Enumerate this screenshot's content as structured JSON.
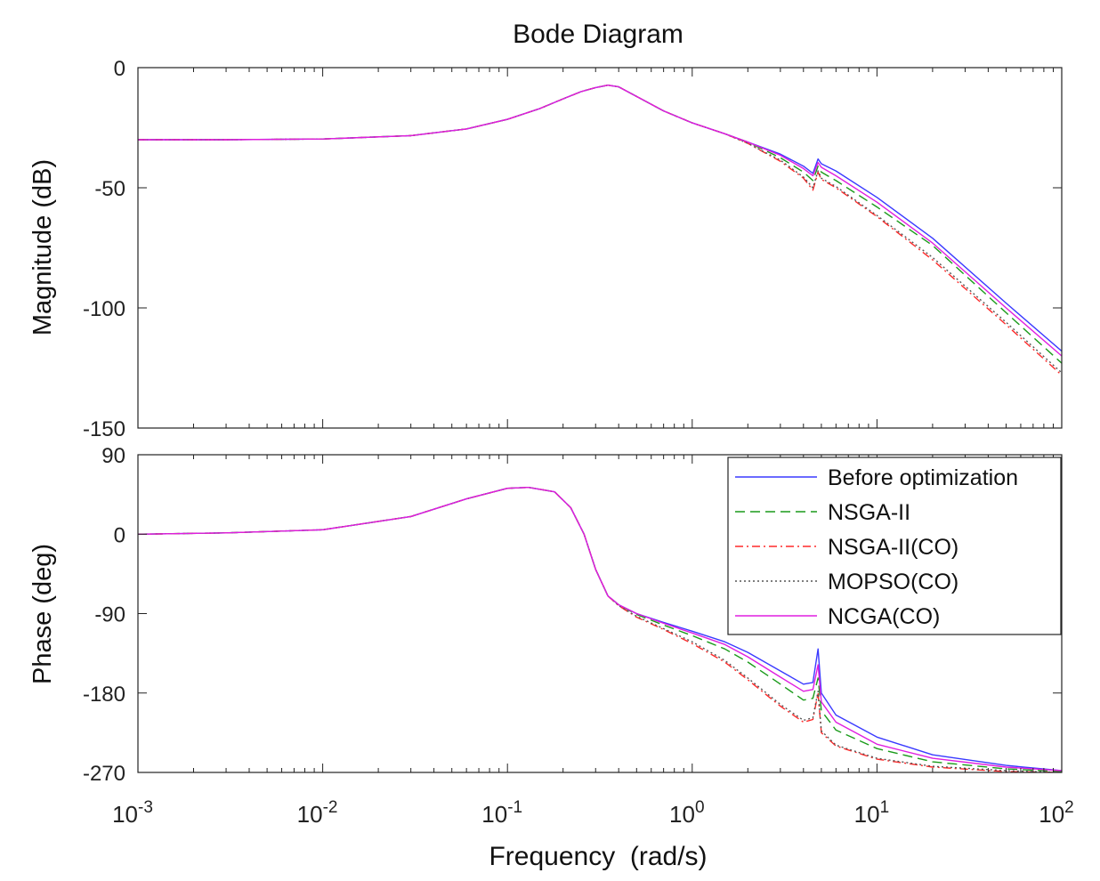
{
  "chart_data": {
    "type": "line",
    "title": "Bode Diagram",
    "xlabel": "Frequency  (rad/s)",
    "xscale": "log",
    "xlim": [
      0.001,
      100
    ],
    "x_ticks": [
      {
        "value": 0.001,
        "base": "10",
        "exp": "-3"
      },
      {
        "value": 0.01,
        "base": "10",
        "exp": "-2"
      },
      {
        "value": 0.1,
        "base": "10",
        "exp": "-1"
      },
      {
        "value": 1,
        "base": "10",
        "exp": "0"
      },
      {
        "value": 10,
        "base": "10",
        "exp": "1"
      },
      {
        "value": 100,
        "base": "10",
        "exp": "2"
      }
    ],
    "grid": false,
    "styles": {
      "Before optimization": {
        "color": "#3a3aff",
        "dash": ""
      },
      "NSGA-II": {
        "color": "#1a9a1a",
        "dash": "11,6"
      },
      "NSGA-II(CO)": {
        "color": "#ff2a2a",
        "dash": "9,4,2,4"
      },
      "MOPSO(CO)": {
        "color": "#555555",
        "dash": "2,3"
      },
      "NCGA(CO)": {
        "color": "#e01ee0",
        "dash": ""
      }
    },
    "legend": {
      "placement": "top-right of phase plot",
      "entries": [
        "Before optimization",
        "NSGA-II",
        "NSGA-II(CO)",
        "MOPSO(CO)",
        "NCGA(CO)"
      ]
    },
    "magnitude": {
      "ylabel": "Magnitude (dB)",
      "ylim": [
        -150,
        0
      ],
      "yticks": [
        "0",
        "-50",
        "-100",
        "-150"
      ],
      "series": [
        {
          "name": "Before optimization",
          "x": [
            0.001,
            0.003,
            0.01,
            0.03,
            0.06,
            0.1,
            0.15,
            0.2,
            0.25,
            0.3,
            0.35,
            0.4,
            0.5,
            0.7,
            1,
            1.5,
            2,
            3,
            4,
            4.5,
            4.8,
            5,
            6,
            10,
            20,
            50,
            100
          ],
          "y": [
            -30,
            -30,
            -29.7,
            -28.3,
            -25.5,
            -21.5,
            -17,
            -13,
            -10,
            -8.3,
            -7.3,
            -8,
            -12,
            -18,
            -23,
            -27.5,
            -31,
            -36,
            -41,
            -44,
            -38,
            -40,
            -43,
            -54,
            -71,
            -98,
            -118
          ]
        },
        {
          "name": "NSGA-II",
          "x": [
            0.001,
            0.003,
            0.01,
            0.03,
            0.06,
            0.1,
            0.15,
            0.2,
            0.25,
            0.3,
            0.35,
            0.4,
            0.5,
            0.7,
            1,
            1.5,
            2,
            3,
            4,
            4.5,
            4.8,
            5,
            6,
            10,
            20,
            50,
            100
          ],
          "y": [
            -30,
            -30,
            -29.7,
            -28.3,
            -25.5,
            -21.5,
            -17,
            -13,
            -10,
            -8.3,
            -7.3,
            -8,
            -12,
            -18,
            -23,
            -27.5,
            -31,
            -37.5,
            -43.5,
            -47,
            -41,
            -43.5,
            -47,
            -58,
            -74,
            -102,
            -123
          ]
        },
        {
          "name": "NSGA-II(CO)",
          "x": [
            0.001,
            0.003,
            0.01,
            0.03,
            0.06,
            0.1,
            0.15,
            0.2,
            0.25,
            0.3,
            0.35,
            0.4,
            0.5,
            0.7,
            1,
            1.5,
            2,
            3,
            4,
            4.5,
            4.8,
            5,
            6,
            10,
            20,
            50,
            100
          ],
          "y": [
            -30,
            -30,
            -29.7,
            -28.3,
            -25.5,
            -21.5,
            -17,
            -13,
            -10,
            -8.3,
            -7.3,
            -8,
            -12,
            -18,
            -23,
            -27.5,
            -31.5,
            -39,
            -46,
            -51,
            -43.5,
            -46.5,
            -50,
            -62,
            -80,
            -107,
            -128
          ]
        },
        {
          "name": "MOPSO(CO)",
          "x": [
            0.001,
            0.003,
            0.01,
            0.03,
            0.06,
            0.1,
            0.15,
            0.2,
            0.25,
            0.3,
            0.35,
            0.4,
            0.5,
            0.7,
            1,
            1.5,
            2,
            3,
            4,
            4.5,
            4.8,
            5,
            6,
            10,
            20,
            50,
            100
          ],
          "y": [
            -30,
            -30,
            -29.7,
            -28.3,
            -25.5,
            -21.5,
            -17,
            -13,
            -10,
            -8.3,
            -7.3,
            -8,
            -12,
            -18,
            -23,
            -27.5,
            -31.5,
            -38.5,
            -45.5,
            -50,
            -43,
            -46,
            -49.5,
            -61.5,
            -79,
            -106,
            -127
          ]
        },
        {
          "name": "NCGA(CO)",
          "x": [
            0.001,
            0.003,
            0.01,
            0.03,
            0.06,
            0.1,
            0.15,
            0.2,
            0.25,
            0.3,
            0.35,
            0.4,
            0.5,
            0.7,
            1,
            1.5,
            2,
            3,
            4,
            4.5,
            4.8,
            5,
            6,
            10,
            20,
            50,
            100
          ],
          "y": [
            -30,
            -30,
            -29.7,
            -28.3,
            -25.5,
            -21.5,
            -17,
            -13,
            -10,
            -8.3,
            -7.3,
            -8,
            -12,
            -18,
            -23,
            -27.5,
            -31,
            -36.5,
            -42,
            -45,
            -39.5,
            -41.5,
            -45,
            -56,
            -73,
            -100,
            -120
          ]
        }
      ]
    },
    "phase": {
      "ylabel": "Phase (deg)",
      "ylim": [
        -270,
        90
      ],
      "yticks": [
        "90",
        "0",
        "-90",
        "-180",
        "-270"
      ],
      "series": [
        {
          "name": "Before optimization",
          "x": [
            0.001,
            0.003,
            0.01,
            0.03,
            0.06,
            0.1,
            0.13,
            0.18,
            0.22,
            0.26,
            0.3,
            0.35,
            0.4,
            0.5,
            0.7,
            1,
            1.5,
            2,
            3,
            4,
            4.5,
            4.8,
            5,
            6,
            10,
            20,
            50,
            100
          ],
          "y": [
            0,
            1.5,
            5,
            20,
            40,
            52,
            53,
            48,
            30,
            0,
            -40,
            -70,
            -80,
            -90,
            -100,
            -110,
            -122,
            -134,
            -155,
            -170,
            -168,
            -130,
            -180,
            -205,
            -230,
            -250,
            -262,
            -268
          ]
        },
        {
          "name": "NSGA-II",
          "x": [
            0.001,
            0.003,
            0.01,
            0.03,
            0.06,
            0.1,
            0.13,
            0.18,
            0.22,
            0.26,
            0.3,
            0.35,
            0.4,
            0.5,
            0.7,
            1,
            1.5,
            2,
            3,
            4,
            4.5,
            4.8,
            5,
            6,
            10,
            20,
            50,
            100
          ],
          "y": [
            0,
            1.5,
            5,
            20,
            40,
            52,
            53,
            48,
            30,
            0,
            -40,
            -70,
            -80,
            -91,
            -103,
            -115,
            -130,
            -145,
            -170,
            -188,
            -186,
            -163,
            -200,
            -222,
            -243,
            -258,
            -266,
            -269
          ]
        },
        {
          "name": "NSGA-II(CO)",
          "x": [
            0.001,
            0.003,
            0.01,
            0.03,
            0.06,
            0.1,
            0.13,
            0.18,
            0.22,
            0.26,
            0.3,
            0.35,
            0.4,
            0.5,
            0.7,
            1,
            1.5,
            2,
            3,
            4,
            4.5,
            4.8,
            5,
            6,
            10,
            20,
            50,
            100
          ],
          "y": [
            0,
            1.5,
            5,
            20,
            40,
            52,
            53,
            48,
            30,
            0,
            -40,
            -70,
            -81,
            -94,
            -108,
            -124,
            -145,
            -165,
            -195,
            -213,
            -210,
            -180,
            -225,
            -240,
            -255,
            -264,
            -269,
            -270
          ]
        },
        {
          "name": "MOPSO(CO)",
          "x": [
            0.001,
            0.003,
            0.01,
            0.03,
            0.06,
            0.1,
            0.13,
            0.18,
            0.22,
            0.26,
            0.3,
            0.35,
            0.4,
            0.5,
            0.7,
            1,
            1.5,
            2,
            3,
            4,
            4.5,
            4.8,
            5,
            6,
            10,
            20,
            50,
            100
          ],
          "y": [
            0,
            1.5,
            5,
            20,
            40,
            52,
            53,
            48,
            30,
            0,
            -40,
            -70,
            -81,
            -93,
            -107,
            -122,
            -143,
            -163,
            -193,
            -211,
            -208,
            -178,
            -223,
            -239,
            -254,
            -263,
            -268,
            -270
          ]
        },
        {
          "name": "NCGA(CO)",
          "x": [
            0.001,
            0.003,
            0.01,
            0.03,
            0.06,
            0.1,
            0.13,
            0.18,
            0.22,
            0.26,
            0.3,
            0.35,
            0.4,
            0.5,
            0.7,
            1,
            1.5,
            2,
            3,
            4,
            4.5,
            4.8,
            5,
            6,
            10,
            20,
            50,
            100
          ],
          "y": [
            0,
            1.5,
            5,
            20,
            40,
            52,
            53,
            48,
            30,
            0,
            -40,
            -70,
            -80,
            -90,
            -101,
            -112,
            -125,
            -139,
            -162,
            -178,
            -176,
            -148,
            -190,
            -213,
            -238,
            -254,
            -264,
            -268
          ]
        }
      ]
    }
  }
}
